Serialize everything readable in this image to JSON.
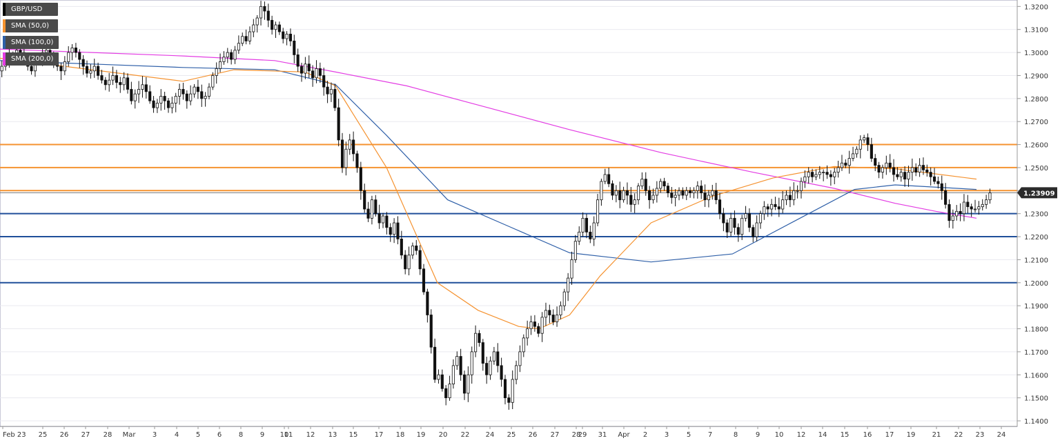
{
  "chart_data": {
    "type": "candlestick",
    "symbol": "GBP/USD",
    "legend": [
      {
        "label": "GBP/USD",
        "color": "#000000"
      },
      {
        "label": "SMA (50,0)",
        "color": "#f5922f"
      },
      {
        "label": "SMA (100,0)",
        "color": "#2e5fa8"
      },
      {
        "label": "SMA (200,0)",
        "color": "#e33ce3"
      }
    ],
    "y_ticks": [
      "1.3200",
      "1.3100",
      "1.3000",
      "1.2900",
      "1.2800",
      "1.2700",
      "1.2600",
      "1.2500",
      "1.2400",
      "1.2300",
      "1.2200",
      "1.2100",
      "1.2000",
      "1.1900",
      "1.1800",
      "1.1700",
      "1.1600",
      "1.1500",
      "1.1400"
    ],
    "x_ticks": [
      "Feb 23",
      "25",
      "26",
      "27",
      "28",
      "Mar",
      "3",
      "4",
      "5",
      "6",
      "8",
      "9",
      "10",
      "11",
      "12",
      "13",
      "15",
      "17",
      "18",
      "19",
      "20",
      "22",
      "24",
      "25",
      "26",
      "27",
      "28",
      "29",
      "31",
      "Apr",
      "2",
      "3",
      "5",
      "7",
      "8",
      "9",
      "10",
      "12",
      "14",
      "15",
      "16",
      "17",
      "19",
      "21",
      "22",
      "23",
      "24"
    ],
    "ylim": [
      1.1376,
      1.3228
    ],
    "current_price": "1.23909",
    "current_price_value": 1.23909,
    "horizontal_levels": [
      {
        "value": 1.26,
        "color": "#f5922f"
      },
      {
        "value": 1.25,
        "color": "#f5922f"
      },
      {
        "value": 1.24,
        "color": "#f5922f"
      },
      {
        "value": 1.23,
        "color": "#1f4e99"
      },
      {
        "value": 1.22,
        "color": "#1f4e99"
      },
      {
        "value": 1.2,
        "color": "#1f4e99"
      }
    ],
    "close_series": [
      1.294,
      1.296,
      1.299,
      1.298,
      1.301,
      1.3,
      1.297,
      1.294,
      1.292,
      1.296,
      1.298,
      1.3,
      1.301,
      1.298,
      1.296,
      1.294,
      1.292,
      1.296,
      1.3,
      1.302,
      1.3,
      1.297,
      1.294,
      1.291,
      1.292,
      1.294,
      1.29,
      1.288,
      1.286,
      1.288,
      1.29,
      1.287,
      1.286,
      1.289,
      1.284,
      1.279,
      1.282,
      1.284,
      1.286,
      1.283,
      1.279,
      1.276,
      1.278,
      1.281,
      1.279,
      1.276,
      1.278,
      1.281,
      1.284,
      1.282,
      1.279,
      1.282,
      1.285,
      1.283,
      1.28,
      1.281,
      1.285,
      1.29,
      1.293,
      1.296,
      1.298,
      1.3,
      1.297,
      1.301,
      1.304,
      1.307,
      1.305,
      1.309,
      1.312,
      1.315,
      1.32,
      1.318,
      1.314,
      1.31,
      1.312,
      1.309,
      1.306,
      1.308,
      1.305,
      1.299,
      1.294,
      1.291,
      1.295,
      1.292,
      1.289,
      1.293,
      1.29,
      1.285,
      1.282,
      1.284,
      1.276,
      1.262,
      1.25,
      1.258,
      1.262,
      1.256,
      1.25,
      1.24,
      1.232,
      1.228,
      1.236,
      1.23,
      1.226,
      1.229,
      1.224,
      1.221,
      1.226,
      1.219,
      1.212,
      1.206,
      1.212,
      1.216,
      1.214,
      1.206,
      1.196,
      1.186,
      1.172,
      1.158,
      1.16,
      1.154,
      1.15,
      1.156,
      1.164,
      1.168,
      1.16,
      1.152,
      1.16,
      1.17,
      1.178,
      1.174,
      1.165,
      1.16,
      1.166,
      1.17,
      1.164,
      1.158,
      1.15,
      1.148,
      1.158,
      1.164,
      1.17,
      1.176,
      1.18,
      1.183,
      1.181,
      1.178,
      1.185,
      1.188,
      1.186,
      1.183,
      1.186,
      1.19,
      1.196,
      1.202,
      1.21,
      1.218,
      1.222,
      1.228,
      1.222,
      1.219,
      1.226,
      1.236,
      1.244,
      1.247,
      1.243,
      1.238,
      1.24,
      1.236,
      1.24,
      1.238,
      1.234,
      1.236,
      1.242,
      1.245,
      1.24,
      1.236,
      1.238,
      1.241,
      1.244,
      1.242,
      1.239,
      1.237,
      1.238,
      1.24,
      1.238,
      1.24,
      1.239,
      1.24,
      1.242,
      1.239,
      1.236,
      1.238,
      1.24,
      1.236,
      1.23,
      1.226,
      1.222,
      1.228,
      1.224,
      1.221,
      1.228,
      1.23,
      1.224,
      1.22,
      1.226,
      1.23,
      1.233,
      1.232,
      1.234,
      1.233,
      1.232,
      1.236,
      1.238,
      1.236,
      1.24,
      1.24,
      1.244,
      1.246,
      1.248,
      1.246,
      1.247,
      1.248,
      1.248,
      1.247,
      1.246,
      1.248,
      1.25,
      1.252,
      1.251,
      1.254,
      1.256,
      1.258,
      1.262,
      1.263,
      1.26,
      1.254,
      1.251,
      1.248,
      1.25,
      1.252,
      1.25,
      1.247,
      1.246,
      1.248,
      1.245,
      1.248,
      1.25,
      1.248,
      1.251,
      1.249,
      1.248,
      1.246,
      1.244,
      1.243,
      1.24,
      1.234,
      1.227,
      1.229,
      1.231,
      1.23,
      1.235,
      1.233,
      1.232,
      1.232,
      1.233,
      1.234,
      1.236,
      1.239
    ],
    "sma_200": [
      [
        1.3015,
        0.0
      ],
      [
        1.2985,
        0.18
      ],
      [
        1.2965,
        0.27
      ],
      [
        1.2915,
        0.33
      ],
      [
        1.2855,
        0.4
      ],
      [
        1.276,
        0.48
      ],
      [
        1.2665,
        0.56
      ],
      [
        1.2565,
        0.65
      ],
      [
        1.248,
        0.74
      ],
      [
        1.241,
        0.82
      ],
      [
        1.2345,
        0.88
      ],
      [
        1.231,
        0.92
      ],
      [
        1.228,
        0.96
      ]
    ],
    "sma_100": [
      [
        1.2965,
        0.0
      ],
      [
        1.2935,
        0.18
      ],
      [
        1.2925,
        0.27
      ],
      [
        1.286,
        0.33
      ],
      [
        1.264,
        0.38
      ],
      [
        1.236,
        0.44
      ],
      [
        1.2245,
        0.5
      ],
      [
        1.213,
        0.56
      ],
      [
        1.209,
        0.64
      ],
      [
        1.2125,
        0.72
      ],
      [
        1.2265,
        0.78
      ],
      [
        1.2405,
        0.84
      ],
      [
        1.2425,
        0.88
      ],
      [
        1.2405,
        0.96
      ]
    ],
    "sma_50": [
      [
        1.2975,
        0.0
      ],
      [
        1.2875,
        0.18
      ],
      [
        1.2925,
        0.23
      ],
      [
        1.2915,
        0.3
      ],
      [
        1.2855,
        0.33
      ],
      [
        1.25,
        0.38
      ],
      [
        1.2,
        0.43
      ],
      [
        1.188,
        0.47
      ],
      [
        1.181,
        0.51
      ],
      [
        1.18,
        0.53
      ],
      [
        1.186,
        0.56
      ],
      [
        1.203,
        0.59
      ],
      [
        1.226,
        0.64
      ],
      [
        1.2375,
        0.7
      ],
      [
        1.2455,
        0.76
      ],
      [
        1.2505,
        0.82
      ],
      [
        1.2495,
        0.88
      ],
      [
        1.245,
        0.96
      ]
    ]
  }
}
